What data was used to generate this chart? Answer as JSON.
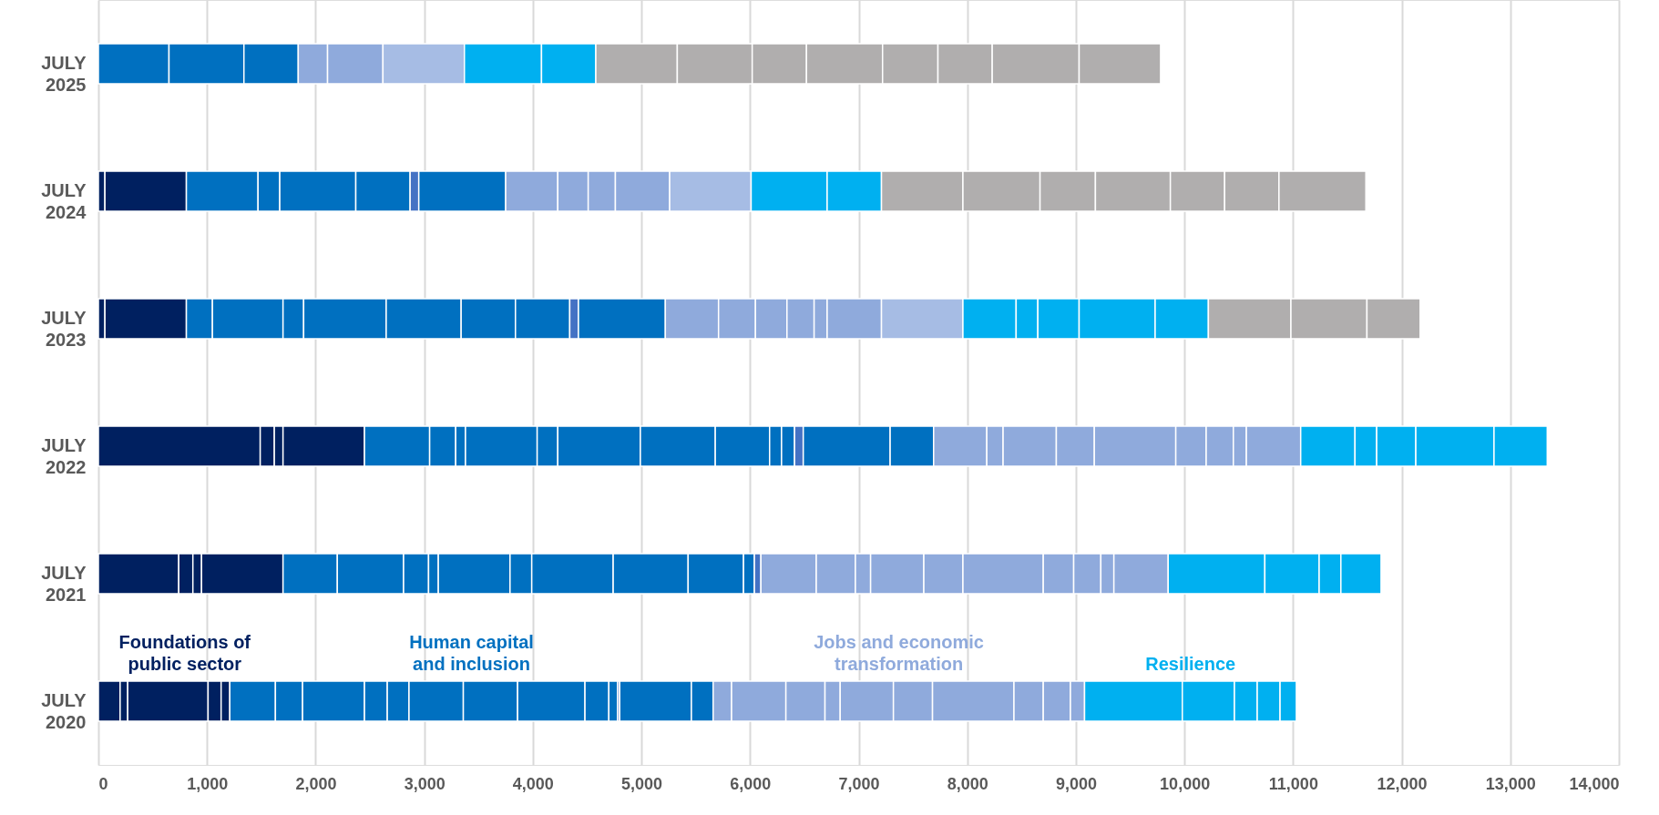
{
  "chart_data": {
    "type": "bar",
    "orientation": "horizontal",
    "stacked": true,
    "grid": "x",
    "categories": [
      "JULY 2025",
      "JULY 2024",
      "JULY 2023",
      "JULY 2022",
      "JULY 2021",
      "JULY 2020"
    ],
    "xlim": [
      0,
      14000
    ],
    "xticks": [
      0,
      {
        "value": 1000,
        "label": "1,000"
      },
      {
        "value": 2000,
        "label": "2,000"
      },
      {
        "value": 3000,
        "label": "3,000"
      },
      {
        "value": 4000,
        "label": "4,000"
      },
      {
        "value": 5000,
        "label": "5,000"
      },
      {
        "value": 6000,
        "label": "6,000"
      },
      {
        "value": 7000,
        "label": "7,000"
      },
      {
        "value": 8000,
        "label": "8,000"
      },
      {
        "value": 9000,
        "label": "9,000"
      },
      {
        "value": 10000,
        "label": "10,000"
      },
      {
        "value": 11000,
        "label": "11,000"
      },
      {
        "value": 12000,
        "label": "12,000"
      },
      {
        "value": 13000,
        "label": "13,000"
      },
      {
        "value": 14000,
        "label": "14,000"
      }
    ],
    "series": [
      {
        "name": "Foundations of public sector",
        "color": "#002060",
        "values": [
          null,
          60,
          60,
          1490,
          740,
          200
        ]
      },
      {
        "color": "#002060",
        "values": [
          null,
          750,
          750,
          130,
          130,
          70
        ]
      },
      {
        "color": "#002060",
        "values": [
          null,
          null,
          null,
          80,
          80,
          740
        ]
      },
      {
        "color": "#002060",
        "values": [
          null,
          null,
          null,
          750,
          750,
          120
        ]
      },
      {
        "color": "#002060",
        "values": [
          null,
          null,
          null,
          null,
          null,
          80
        ]
      },
      {
        "name": "Human capital and inclusion",
        "color": "#0070c0",
        "values": [
          650,
          660,
          240,
          600,
          500,
          420
        ]
      },
      {
        "color": "#0070c0",
        "values": [
          690,
          200,
          650,
          240,
          610,
          250
        ]
      },
      {
        "color": "#0070c0",
        "values": [
          500,
          700,
          190,
          90,
          230,
          570
        ]
      },
      {
        "color": "#0070c0",
        "values": [
          null,
          500,
          760,
          660,
          90,
          210
        ]
      },
      {
        "color": "#0070c0",
        "values": [
          null,
          null,
          690,
          190,
          660,
          200
        ]
      },
      {
        "color": "#0070c0",
        "values": [
          null,
          null,
          500,
          760,
          200,
          500
        ]
      },
      {
        "color": "#0070c0",
        "values": [
          null,
          null,
          500,
          690,
          750,
          500
        ]
      },
      {
        "color": "#0070c0",
        "values": [
          null,
          null,
          null,
          500,
          690,
          620
        ]
      },
      {
        "color": "#0070c0",
        "values": [
          null,
          null,
          null,
          110,
          510,
          220
        ]
      },
      {
        "color": "#0070c0",
        "values": [
          null,
          null,
          null,
          120,
          100,
          80
        ]
      },
      {
        "color": "#4472c4",
        "values": [
          null,
          80,
          80,
          80,
          60,
          20
        ]
      },
      {
        "color": "#0070c0",
        "values": [
          null,
          800,
          800,
          800,
          null,
          660
        ]
      },
      {
        "color": "#0070c0",
        "values": [
          null,
          null,
          null,
          400,
          null,
          200
        ]
      },
      {
        "name": "Jobs and economic transformation",
        "color": "#8faadc",
        "values": [
          270,
          480,
          490,
          490,
          510,
          170
        ]
      },
      {
        "color": "#8faadc",
        "values": [
          510,
          280,
          340,
          150,
          360,
          500
        ]
      },
      {
        "color": "#8faadc",
        "values": [
          null,
          250,
          290,
          490,
          140,
          360
        ]
      },
      {
        "color": "#8faadc",
        "values": [
          null,
          500,
          250,
          350,
          490,
          140
        ]
      },
      {
        "color": "#8faadc",
        "values": [
          null,
          null,
          120,
          750,
          360,
          490
        ]
      },
      {
        "color": "#8faadc",
        "values": [
          null,
          null,
          500,
          280,
          740,
          360
        ]
      },
      {
        "color": "#8faadc",
        "values": [
          null,
          null,
          null,
          250,
          280,
          750
        ]
      },
      {
        "color": "#8faadc",
        "values": [
          null,
          null,
          null,
          120,
          250,
          270
        ]
      },
      {
        "color": "#8faadc",
        "values": [
          null,
          null,
          null,
          500,
          120,
          250
        ]
      },
      {
        "color": "#8faadc",
        "values": [
          null,
          null,
          null,
          null,
          500,
          130
        ]
      },
      {
        "color": "#a6bce4",
        "values": [
          750,
          750,
          750,
          null,
          null,
          null
        ]
      },
      {
        "name": "Resilience",
        "color": "#00b0f0",
        "values": [
          710,
          700,
          490,
          500,
          890,
          900
        ]
      },
      {
        "color": "#00b0f0",
        "values": [
          500,
          500,
          200,
          200,
          500,
          480
        ]
      },
      {
        "color": "#00b0f0",
        "values": [
          null,
          null,
          380,
          360,
          200,
          210
        ]
      },
      {
        "color": "#00b0f0",
        "values": [
          null,
          null,
          700,
          720,
          370,
          210
        ]
      },
      {
        "color": "#00b0f0",
        "values": [
          null,
          null,
          490,
          490,
          null,
          150
        ]
      },
      {
        "color": "#b0aeae",
        "values": [
          750,
          750,
          760,
          null,
          null,
          null
        ]
      },
      {
        "color": "#b0aeae",
        "values": [
          690,
          710,
          700,
          null,
          null,
          null
        ]
      },
      {
        "color": "#b0aeae",
        "values": [
          500,
          510,
          490,
          null,
          null,
          null
        ]
      },
      {
        "color": "#b0aeae",
        "values": [
          700,
          690,
          null,
          null,
          null,
          null
        ]
      },
      {
        "color": "#b0aeae",
        "values": [
          510,
          500,
          null,
          null,
          null,
          null
        ]
      },
      {
        "color": "#b0aeae",
        "values": [
          500,
          500,
          null,
          null,
          null,
          null
        ]
      },
      {
        "color": "#b0aeae",
        "values": [
          800,
          800,
          null,
          null,
          null,
          null
        ]
      },
      {
        "color": "#b0aeae",
        "values": [
          750,
          null,
          null,
          null,
          null,
          null
        ]
      }
    ]
  }
}
